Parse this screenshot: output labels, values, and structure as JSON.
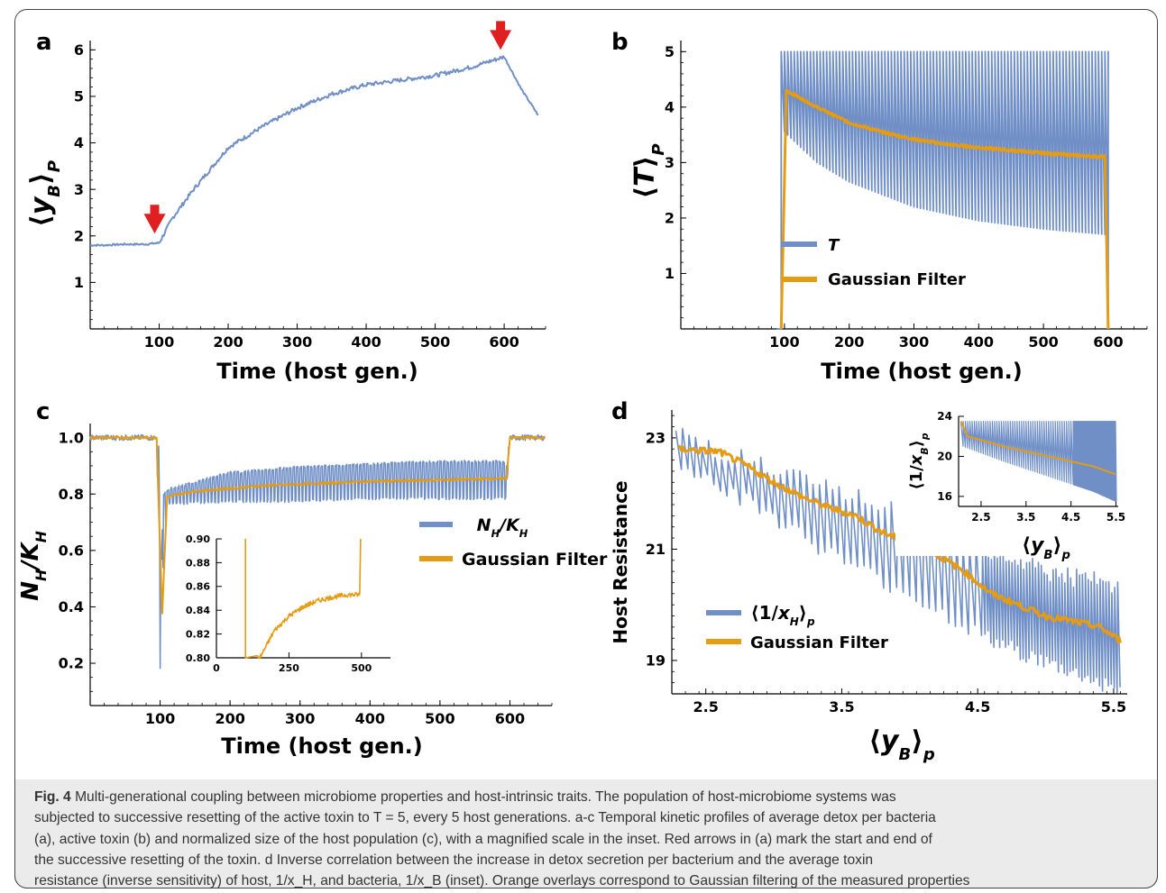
{
  "colors": {
    "blue": "#6f8fc6",
    "orange": "#e59c12",
    "arrow": "#e02020",
    "axis": "#000000"
  },
  "panels": {
    "a": {
      "letter": "a",
      "ylabel": "⟨y_B⟩_P",
      "xlabel": "Time (host gen.)"
    },
    "b": {
      "letter": "b",
      "ylabel": "⟨T⟩_P",
      "xlabel": "Time (host gen.)"
    },
    "c": {
      "letter": "c",
      "ylabel": "N_H/K_H",
      "xlabel": "Time (host gen.)"
    },
    "d": {
      "letter": "d",
      "ylabel": "Host Resistance",
      "xlabel": "⟨y_B⟩_p",
      "inset_ylabel": "⟨1/x_B⟩_p",
      "inset_xlabel": "⟨y_B⟩_p"
    }
  },
  "chart_data": [
    {
      "panel": "a",
      "type": "line",
      "xlabel": "Time (host gen.)",
      "ylabel": "⟨y_B⟩_P",
      "xlim": [
        0,
        660
      ],
      "ylim": [
        0,
        6.2
      ],
      "xticks": [
        100,
        200,
        300,
        400,
        500,
        600
      ],
      "yticks": [
        1,
        2,
        3,
        4,
        5,
        6
      ],
      "series": [
        {
          "x": [
            0,
            20,
            50,
            80,
            100,
            120,
            150,
            200,
            250,
            300,
            350,
            400,
            450,
            500,
            550,
            600,
            625,
            650
          ],
          "y": [
            1.8,
            1.8,
            1.82,
            1.82,
            1.85,
            2.4,
            3.0,
            3.9,
            4.35,
            4.75,
            5.05,
            5.25,
            5.35,
            5.45,
            5.62,
            5.85,
            5.15,
            4.58
          ]
        }
      ],
      "annotations": [
        "arrow at t=100",
        "arrow at t=600"
      ]
    },
    {
      "panel": "b",
      "type": "line",
      "xlabel": "Time (host gen.)",
      "ylabel": "⟨T⟩_P",
      "xlim": [
        -60,
        660
      ],
      "ylim": [
        0,
        5.2
      ],
      "xticks": [
        100,
        200,
        300,
        400,
        500,
        600
      ],
      "yticks": [
        1,
        2,
        3,
        4,
        5
      ],
      "legend": "right",
      "series": [
        {
          "name": "T",
          "peak": 5,
          "period": 5,
          "start": 95,
          "end": 600,
          "trough_x": [
            100,
            150,
            200,
            300,
            400,
            500,
            600
          ],
          "trough_y": [
            3.55,
            3.0,
            2.65,
            2.2,
            1.95,
            1.8,
            1.7
          ]
        },
        {
          "name": "Gaussian Filter",
          "x": [
            95,
            103,
            150,
            200,
            250,
            300,
            350,
            400,
            450,
            500,
            550,
            595,
            600
          ],
          "y": [
            0,
            4.3,
            4.0,
            3.72,
            3.55,
            3.42,
            3.33,
            3.27,
            3.22,
            3.17,
            3.13,
            3.1,
            0
          ]
        }
      ]
    },
    {
      "panel": "c",
      "type": "line",
      "xlabel": "Time (host gen.)",
      "ylabel": "N_H/K_H",
      "xlim": [
        0,
        660
      ],
      "ylim": [
        0.05,
        1.05
      ],
      "xticks": [
        100,
        200,
        300,
        400,
        500,
        600
      ],
      "yticks": [
        0.2,
        0.4,
        0.6,
        0.8,
        1.0
      ],
      "legend": "right",
      "series": [
        {
          "name": "N_H/K_H",
          "x": [
            0,
            95,
            100,
            103,
            110,
            200,
            300,
            400,
            500,
            595,
            600,
            650
          ],
          "low": [
            0.99,
            0.99,
            0.18,
            0.5,
            0.76,
            0.77,
            0.77,
            0.78,
            0.78,
            0.78,
            0.99,
            0.99
          ],
          "high": [
            1.01,
            1.01,
            1.0,
            0.8,
            0.82,
            0.88,
            0.9,
            0.91,
            0.92,
            0.92,
            1.01,
            1.01
          ]
        },
        {
          "name": "Gaussian Filter",
          "x": [
            0,
            95,
            100,
            103,
            110,
            150,
            200,
            250,
            300,
            400,
            500,
            595,
            600,
            650
          ],
          "y": [
            1.0,
            1.0,
            0.6,
            0.38,
            0.79,
            0.81,
            0.82,
            0.83,
            0.835,
            0.845,
            0.85,
            0.855,
            1.0,
            1.0
          ]
        }
      ]
    },
    {
      "panel": "c-inset",
      "type": "line",
      "xlim": [
        0,
        600
      ],
      "ylim": [
        0.8,
        0.9
      ],
      "xticks": [
        0,
        250,
        500
      ],
      "yticks": [
        0.8,
        0.82,
        0.84,
        0.86,
        0.88,
        0.9
      ],
      "series": [
        {
          "name": "Gaussian Filter",
          "x": [
            100,
            100.5,
            150,
            200,
            250,
            300,
            350,
            400,
            450,
            495,
            500
          ],
          "y": [
            0.9,
            0.8,
            0.8,
            0.823,
            0.835,
            0.843,
            0.848,
            0.851,
            0.853,
            0.853,
            0.9
          ]
        }
      ]
    },
    {
      "panel": "d",
      "type": "line",
      "xlabel": "⟨y_B⟩_p",
      "ylabel": "Host Resistance",
      "xlim": [
        2.25,
        5.6
      ],
      "ylim": [
        18.4,
        23.5
      ],
      "xticks": [
        2.5,
        3.5,
        4.5,
        5.5
      ],
      "yticks": [
        19,
        21,
        23
      ],
      "legend": "bottom-left",
      "series": [
        {
          "name": "⟨1/x_H⟩_p",
          "trend_x": [
            2.3,
            3.0,
            3.5,
            4.0,
            4.5,
            5.0,
            5.55
          ],
          "trend_high": [
            23.1,
            22.4,
            22.0,
            21.7,
            21.1,
            20.6,
            20.3
          ],
          "trend_low": [
            22.6,
            21.6,
            20.8,
            20.2,
            19.5,
            19.0,
            18.5
          ]
        },
        {
          "name": "Gaussian Filter",
          "x": [
            2.3,
            2.6,
            2.8,
            3.0,
            3.2,
            3.4,
            3.6,
            3.8,
            4.0,
            4.2,
            4.4,
            4.6,
            4.8,
            5.0,
            5.2,
            5.4,
            5.55
          ],
          "y": [
            22.8,
            22.75,
            22.5,
            22.2,
            21.95,
            21.75,
            21.6,
            21.3,
            21.1,
            20.9,
            20.6,
            20.2,
            20.0,
            19.8,
            19.7,
            19.6,
            19.35
          ]
        }
      ]
    },
    {
      "panel": "d-inset",
      "type": "line",
      "xlabel": "⟨y_B⟩_p",
      "ylabel": "⟨1/x_B⟩_p",
      "xlim": [
        2.0,
        5.55
      ],
      "ylim": [
        15,
        24
      ],
      "xticks": [
        2.5,
        3.5,
        4.5,
        5.5
      ],
      "yticks": [
        16,
        20,
        24
      ],
      "series": [
        {
          "name": "⟨1/x_B⟩_p",
          "high": 23.5,
          "trough_x": [
            2.1,
            3.0,
            4.0,
            5.0,
            5.5
          ],
          "trough_y": [
            21.0,
            19.5,
            18.0,
            16.5,
            15.5
          ]
        },
        {
          "name": "Gaussian Filter",
          "x": [
            2.05,
            2.2,
            3.0,
            4.0,
            5.0,
            5.5
          ],
          "y": [
            23.5,
            22.0,
            21.0,
            20.0,
            19.0,
            18.2
          ]
        }
      ]
    }
  ],
  "legends": {
    "b": [
      "T",
      "Gaussian Filter"
    ],
    "c": [
      "N_H/K_H",
      "Gaussian Filter"
    ],
    "d": [
      "⟨1/x_H⟩_p",
      "Gaussian Filter"
    ]
  },
  "caption": {
    "fig_label": "Fig. 4",
    "title": " Multi-generational coupling between microbiome properties and host-intrinsic traits. The population of host-microbiome systems was",
    "line2": "subjected to successive resetting of the active toxin to T = 5, every 5 host generations. a-c Temporal kinetic profiles of average detox per bacteria",
    "line3": "(a), active toxin (b) and normalized size of the host population (c), with a magnified scale in the inset. Red arrows in (a) mark the start and end of",
    "line4": "the successive resetting of the toxin. d Inverse correlation between the increase in detox secretion per bacterium and the average toxin",
    "line5": "resistance (inverse sensitivity) of host, 1/x_H, and bacteria, 1/x_B (inset). Orange overlays correspond to Gaussian filtering of the measured properties"
  }
}
